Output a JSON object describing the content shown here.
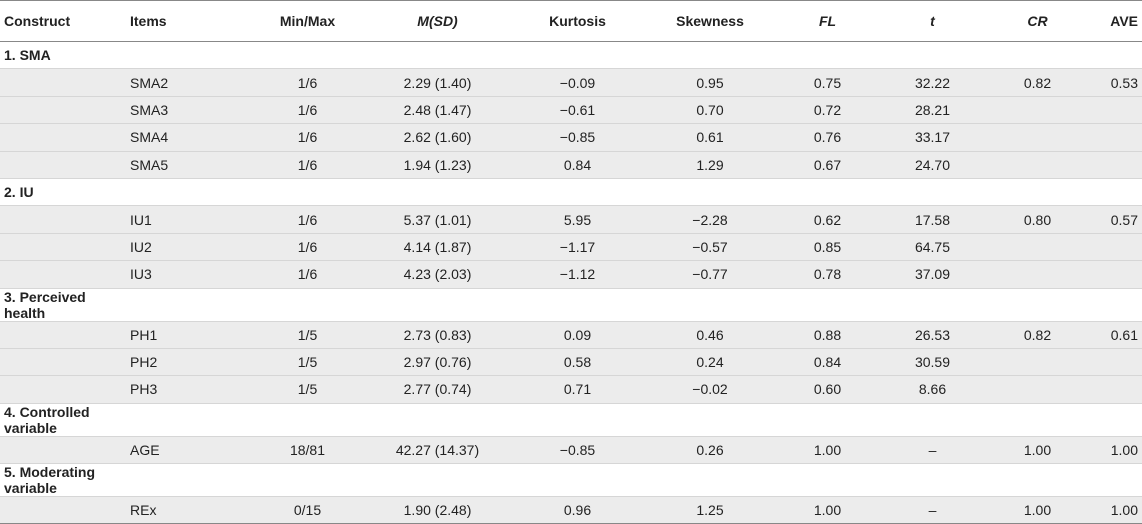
{
  "table": {
    "headers": [
      "Construct",
      "Items",
      "Min/Max",
      "M(SD)",
      "Kurtosis",
      "Skewness",
      "FL",
      "t",
      "CR",
      "AVE"
    ],
    "header_italic": [
      false,
      false,
      false,
      true,
      false,
      false,
      true,
      true,
      true,
      false
    ],
    "sections": [
      {
        "label": "1. SMA",
        "rows": [
          [
            "SMA2",
            "1/6",
            "2.29 (1.40)",
            "−0.09",
            "0.95",
            "0.75",
            "32.22",
            "0.82",
            "0.53"
          ],
          [
            "SMA3",
            "1/6",
            "2.48 (1.47)",
            "−0.61",
            "0.70",
            "0.72",
            "28.21",
            "",
            ""
          ],
          [
            "SMA4",
            "1/6",
            "2.62 (1.60)",
            "−0.85",
            "0.61",
            "0.76",
            "33.17",
            "",
            ""
          ],
          [
            "SMA5",
            "1/6",
            "1.94 (1.23)",
            "0.84",
            "1.29",
            "0.67",
            "24.70",
            "",
            ""
          ]
        ]
      },
      {
        "label": "2. IU",
        "rows": [
          [
            "IU1",
            "1/6",
            "5.37 (1.01)",
            "5.95",
            "−2.28",
            "0.62",
            "17.58",
            "0.80",
            "0.57"
          ],
          [
            "IU2",
            "1/6",
            "4.14 (1.87)",
            "−1.17",
            "−0.57",
            "0.85",
            "64.75",
            "",
            ""
          ],
          [
            "IU3",
            "1/6",
            "4.23 (2.03)",
            "−1.12",
            "−0.77",
            "0.78",
            "37.09",
            "",
            ""
          ]
        ]
      },
      {
        "label": "3. Perceived health",
        "rows": [
          [
            "PH1",
            "1/5",
            "2.73 (0.83)",
            "0.09",
            "0.46",
            "0.88",
            "26.53",
            "0.82",
            "0.61"
          ],
          [
            "PH2",
            "1/5",
            "2.97 (0.76)",
            "0.58",
            "0.24",
            "0.84",
            "30.59",
            "",
            ""
          ],
          [
            "PH3",
            "1/5",
            "2.77 (0.74)",
            "0.71",
            "−0.02",
            "0.60",
            "8.66",
            "",
            ""
          ]
        ]
      },
      {
        "label": "4. Controlled variable",
        "rows": [
          [
            "AGE",
            "18/81",
            "42.27 (14.37)",
            "−0.85",
            "0.26",
            "1.00",
            "–",
            "1.00",
            "1.00"
          ]
        ]
      },
      {
        "label": "5. Moderating variable",
        "rows": [
          [
            "REx",
            "0/15",
            "1.90 (2.48)",
            "0.96",
            "1.25",
            "1.00",
            "–",
            "1.00",
            "1.00"
          ]
        ]
      }
    ]
  },
  "chart_data": {
    "type": "table",
    "columns": [
      "Construct",
      "Items",
      "Min/Max",
      "M(SD)",
      "Kurtosis",
      "Skewness",
      "FL",
      "t",
      "CR",
      "AVE"
    ],
    "rows": [
      [
        "1. SMA",
        "SMA2",
        "1/6",
        "2.29 (1.40)",
        "−0.09",
        "0.95",
        "0.75",
        "32.22",
        "0.82",
        "0.53"
      ],
      [
        "1. SMA",
        "SMA3",
        "1/6",
        "2.48 (1.47)",
        "−0.61",
        "0.70",
        "0.72",
        "28.21",
        "",
        ""
      ],
      [
        "1. SMA",
        "SMA4",
        "1/6",
        "2.62 (1.60)",
        "−0.85",
        "0.61",
        "0.76",
        "33.17",
        "",
        ""
      ],
      [
        "1. SMA",
        "SMA5",
        "1/6",
        "1.94 (1.23)",
        "0.84",
        "1.29",
        "0.67",
        "24.70",
        "",
        ""
      ],
      [
        "2. IU",
        "IU1",
        "1/6",
        "5.37 (1.01)",
        "5.95",
        "−2.28",
        "0.62",
        "17.58",
        "0.80",
        "0.57"
      ],
      [
        "2. IU",
        "IU2",
        "1/6",
        "4.14 (1.87)",
        "−1.17",
        "−0.57",
        "0.85",
        "64.75",
        "",
        ""
      ],
      [
        "2. IU",
        "IU3",
        "1/6",
        "4.23 (2.03)",
        "−1.12",
        "−0.77",
        "0.78",
        "37.09",
        "",
        ""
      ],
      [
        "3. Perceived health",
        "PH1",
        "1/5",
        "2.73 (0.83)",
        "0.09",
        "0.46",
        "0.88",
        "26.53",
        "0.82",
        "0.61"
      ],
      [
        "3. Perceived health",
        "PH2",
        "1/5",
        "2.97 (0.76)",
        "0.58",
        "0.24",
        "0.84",
        "30.59",
        "",
        ""
      ],
      [
        "3. Perceived health",
        "PH3",
        "1/5",
        "2.77 (0.74)",
        "0.71",
        "−0.02",
        "0.60",
        "8.66",
        "",
        ""
      ],
      [
        "4. Controlled variable",
        "AGE",
        "18/81",
        "42.27 (14.37)",
        "−0.85",
        "0.26",
        "1.00",
        "–",
        "1.00",
        "1.00"
      ],
      [
        "5. Moderating variable",
        "REx",
        "0/15",
        "1.90 (2.48)",
        "0.96",
        "1.25",
        "1.00",
        "–",
        "1.00",
        "1.00"
      ]
    ]
  },
  "colors": {
    "row_shade": "#ececec",
    "rule": "#888888",
    "text": "#222222"
  }
}
